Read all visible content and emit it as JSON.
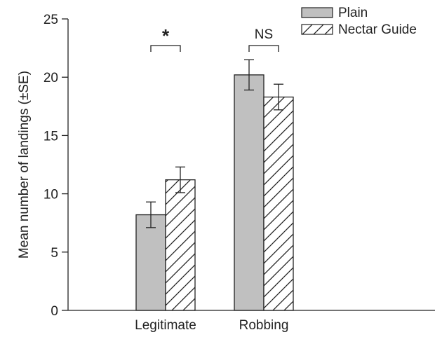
{
  "chart_data": {
    "type": "bar",
    "title": "",
    "xlabel": "",
    "ylabel": "Mean number of landings (±SE)",
    "categories": [
      "Legitimate",
      "Robbing"
    ],
    "ylim": [
      0,
      25
    ],
    "yticks": [
      0,
      5,
      10,
      15,
      20,
      25
    ],
    "grid": false,
    "legend_position": "top-right",
    "series": [
      {
        "name": "Plain",
        "values": [
          8.2,
          20.2
        ],
        "error": [
          1.1,
          1.3
        ],
        "fill": "#c0c0c0",
        "pattern": "solid"
      },
      {
        "name": "Nectar Guide",
        "values": [
          11.2,
          18.3
        ],
        "error": [
          1.1,
          1.1
        ],
        "fill": "#ffffff",
        "pattern": "hatched"
      }
    ],
    "significance": [
      {
        "category": "Legitimate",
        "label": "*"
      },
      {
        "category": "Robbing",
        "label": "NS"
      }
    ]
  }
}
